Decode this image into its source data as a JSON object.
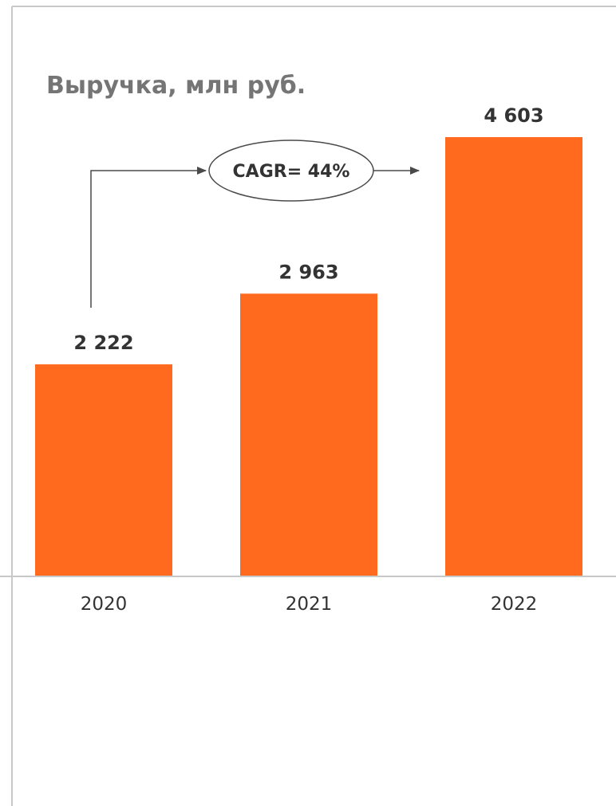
{
  "colors": {
    "bar": "#ff6a1f",
    "title": "#757575",
    "value_label": "#333333",
    "axis": "#c8c8c8",
    "frame": "#c8c8c8",
    "tick_label": "#333333",
    "arrow": "#4a4a4a"
  },
  "annotation": {
    "cagr_label": "CAGR= 44%"
  },
  "chart_data": {
    "type": "bar",
    "title": "Выручка, млн руб.",
    "xlabel": "",
    "ylabel": "",
    "categories": [
      "2020",
      "2021",
      "2022"
    ],
    "values": [
      2222,
      2963,
      4603
    ],
    "value_labels": [
      "2 222",
      "2 963",
      "4 603"
    ],
    "ylim": [
      0,
      4603
    ],
    "grid": false,
    "legend": "none"
  }
}
